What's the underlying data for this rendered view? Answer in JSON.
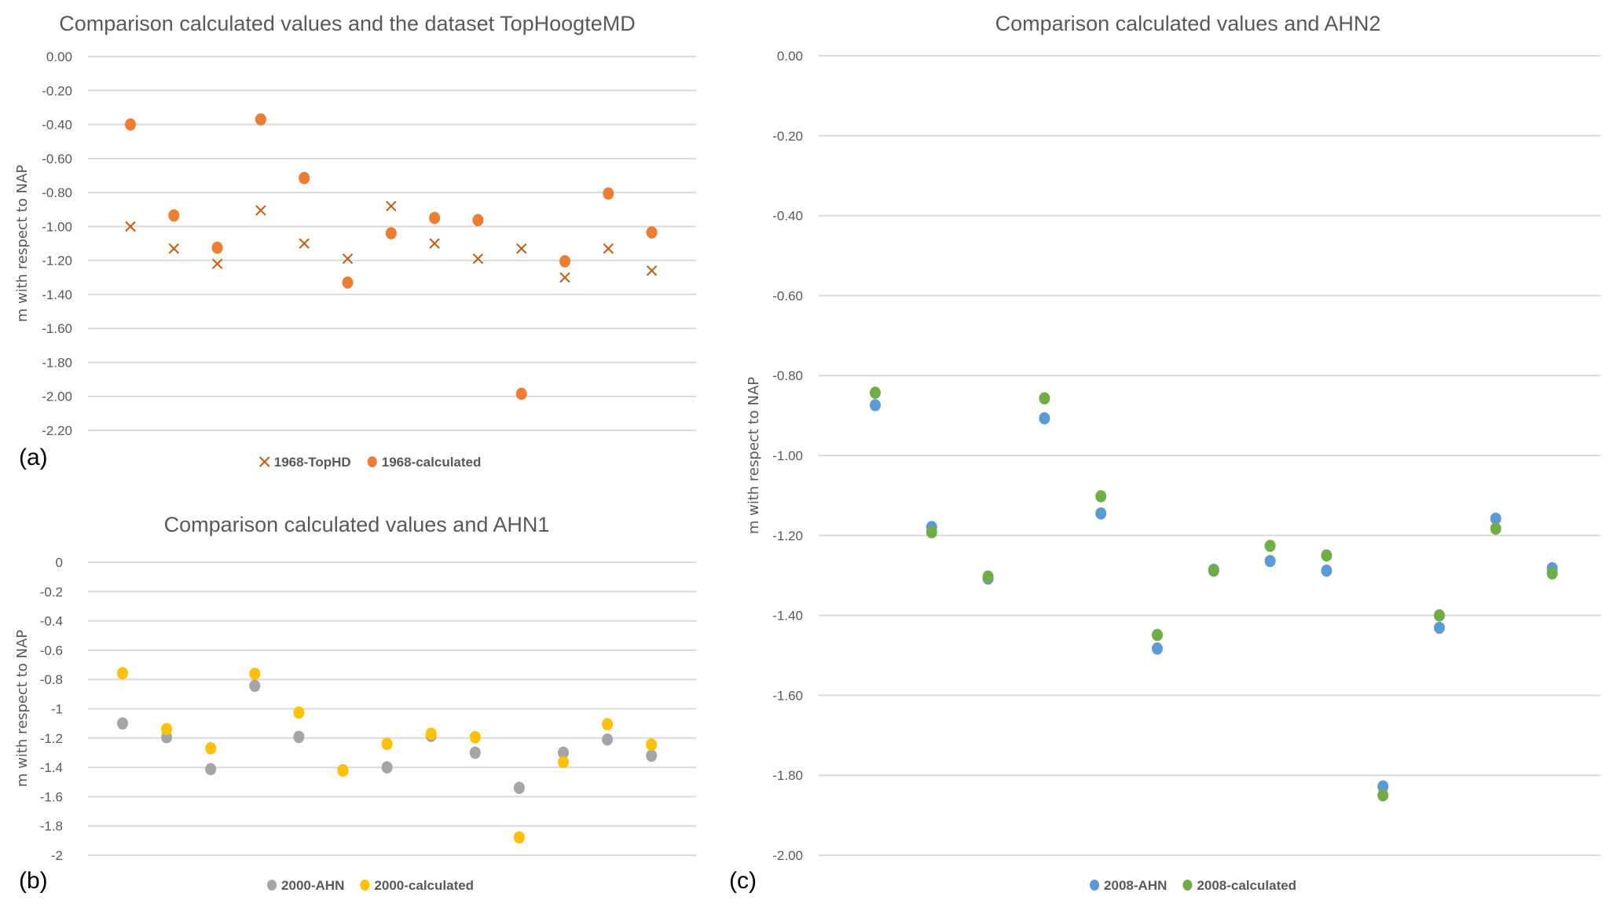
{
  "figure": {
    "panels": [
      "(a)",
      "(b)",
      "(c)"
    ]
  },
  "chart_data": [
    {
      "id": "a",
      "type": "scatter",
      "panel_label": "(a)",
      "title": "Comparison calculated values and the dataset TopHoogteMD",
      "xlabel": "",
      "ylabel": "m with respect to NAP",
      "ylim": [
        -2.2,
        0
      ],
      "yticks": [
        0,
        -0.2,
        -0.4,
        -0.6,
        -0.8,
        -1.0,
        -1.2,
        -1.4,
        -1.6,
        -1.8,
        -2.0,
        -2.2
      ],
      "ytick_labels": [
        "0.00",
        "-0.20",
        "-0.40",
        "-0.60",
        "-0.80",
        "-1.00",
        "-1.20",
        "-1.40",
        "-1.60",
        "-1.80",
        "-2.00",
        "-2.20"
      ],
      "grid": true,
      "legend_position": "bottom",
      "x": [
        1,
        2,
        3,
        4,
        5,
        6,
        7,
        8,
        9,
        10,
        11,
        12,
        13
      ],
      "series": [
        {
          "name": "1968-TopHD",
          "marker": "x",
          "color": "#C55A11",
          "values": [
            -1.0,
            -1.13,
            -1.22,
            -0.905,
            -1.1,
            -1.19,
            -0.88,
            -1.1,
            -1.19,
            -1.13,
            -1.3,
            -1.13,
            -1.26
          ]
        },
        {
          "name": "1968-calculated",
          "marker": "circle",
          "color": "#ED7D31",
          "values": [
            -0.4,
            -0.935,
            -1.125,
            -0.37,
            -0.715,
            -1.33,
            -1.04,
            -0.95,
            -0.963,
            -1.985,
            -1.205,
            -0.806,
            -1.035
          ]
        }
      ]
    },
    {
      "id": "b",
      "type": "scatter",
      "panel_label": "(b)",
      "title": "Comparison calculated values and AHN1",
      "xlabel": "",
      "ylabel": "m with respect to NAP",
      "ylim": [
        -2,
        0
      ],
      "yticks": [
        0,
        -0.2,
        -0.4,
        -0.6,
        -0.8,
        -1,
        -1.2,
        -1.4,
        -1.6,
        -1.8,
        -2
      ],
      "ytick_labels": [
        "0",
        "-0.2",
        "-0.4",
        "-0.6",
        "-0.8",
        "-1",
        "-1.2",
        "-1.4",
        "-1.6",
        "-1.8",
        "-2"
      ],
      "grid": true,
      "legend_position": "bottom",
      "x": [
        1,
        2,
        3,
        4,
        5,
        6,
        7,
        8,
        9,
        10,
        11,
        12,
        13
      ],
      "series": [
        {
          "name": "2000-AHN",
          "marker": "circle",
          "color": "#A5A5A5",
          "values": [
            -1.1,
            -1.194,
            -1.412,
            -0.843,
            -1.192,
            -1.42,
            -1.4,
            -1.185,
            -1.3,
            -1.54,
            -1.3,
            -1.21,
            -1.32
          ]
        },
        {
          "name": "2000-calculated",
          "marker": "circle",
          "color": "#FFC000",
          "values": [
            -0.757,
            -1.139,
            -1.27,
            -0.761,
            -1.026,
            -1.423,
            -1.24,
            -1.17,
            -1.194,
            -1.878,
            -1.364,
            -1.105,
            -1.244
          ]
        }
      ]
    },
    {
      "id": "c",
      "type": "scatter",
      "panel_label": "(c)",
      "title": "Comparison calculated values and AHN2",
      "xlabel": "",
      "ylabel": "m with respect to NAP",
      "ylim": [
        -2.0,
        0
      ],
      "yticks": [
        0,
        -0.2,
        -0.4,
        -0.6,
        -0.8,
        -1.0,
        -1.2,
        -1.4,
        -1.6,
        -1.8,
        -2.0
      ],
      "ytick_labels": [
        "0.00",
        "-0.20",
        "-0.40",
        "-0.60",
        "-0.80",
        "-1.00",
        "-1.20",
        "-1.40",
        "-1.60",
        "-1.80",
        "-2.00"
      ],
      "grid": true,
      "legend_position": "bottom",
      "x": [
        1,
        2,
        3,
        4,
        5,
        6,
        7,
        8,
        9,
        10,
        11,
        12,
        13
      ],
      "series": [
        {
          "name": "2008-AHN",
          "marker": "circle",
          "color": "#5B9BD5",
          "values": [
            -0.874,
            -1.179,
            -1.308,
            -0.907,
            -1.145,
            -1.483,
            -1.286,
            -1.264,
            -1.288,
            -1.828,
            -1.431,
            -1.158,
            -1.282
          ]
        },
        {
          "name": "2008-calculated",
          "marker": "circle",
          "color": "#70AD47",
          "values": [
            -0.843,
            -1.192,
            -1.303,
            -0.857,
            -1.102,
            -1.449,
            -1.288,
            -1.226,
            -1.25,
            -1.85,
            -1.4,
            -1.183,
            -1.295
          ]
        }
      ]
    }
  ]
}
